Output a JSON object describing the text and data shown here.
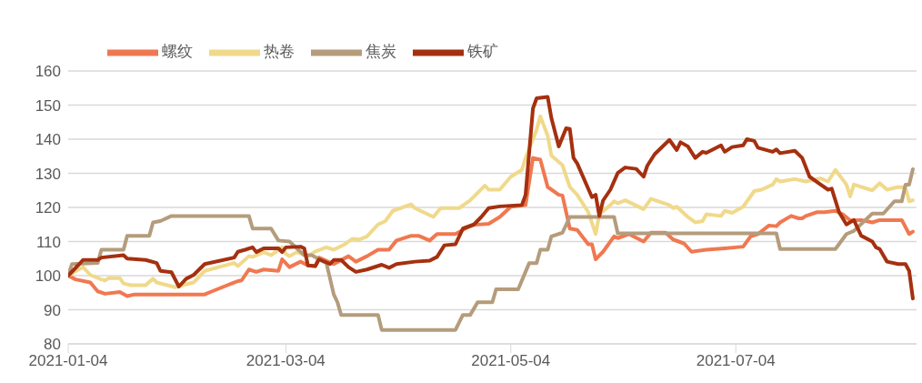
{
  "chart_data": {
    "type": "line",
    "xlim": [
      "2021-01-04",
      "2021-08-22"
    ],
    "xticks": [
      "2021-01-04",
      "2021-03-04",
      "2021-05-04",
      "2021-07-04"
    ],
    "ylim": [
      80,
      160
    ],
    "yticks": [
      80,
      90,
      100,
      110,
      120,
      130,
      140,
      150,
      160
    ],
    "grid": "y",
    "legend": "top left",
    "marker": "none",
    "line_style": "solid",
    "series": [
      {
        "name": "螺纹",
        "color": "#f07850",
        "x": [
          "2021-01-04",
          "2021-01-06",
          "2021-01-10",
          "2021-01-12",
          "2021-01-14",
          "2021-01-18",
          "2021-01-20",
          "2021-01-22",
          "2021-02-10",
          "2021-02-12",
          "2021-02-19",
          "2021-02-20",
          "2021-02-22",
          "2021-02-24",
          "2021-02-26",
          "2021-03-02",
          "2021-03-03",
          "2021-03-05",
          "2021-03-08",
          "2021-03-10",
          "2021-03-12",
          "2021-03-13",
          "2021-03-17",
          "2021-03-21",
          "2021-03-23",
          "2021-03-26",
          "2021-03-29",
          "2021-04-01",
          "2021-04-03",
          "2021-04-07",
          "2021-04-09",
          "2021-04-12",
          "2021-04-14",
          "2021-04-19",
          "2021-04-22",
          "2021-04-24",
          "2021-04-28",
          "2021-05-01",
          "2021-05-04",
          "2021-05-08",
          "2021-05-10",
          "2021-05-12",
          "2021-05-14",
          "2021-05-17",
          "2021-05-18",
          "2021-05-20",
          "2021-05-22",
          "2021-05-25",
          "2021-05-26",
          "2021-05-27",
          "2021-05-29",
          "2021-06-01",
          "2021-06-02",
          "2021-06-05",
          "2021-06-09",
          "2021-06-11",
          "2021-06-15",
          "2021-06-17",
          "2021-06-20",
          "2021-06-22",
          "2021-06-26",
          "2021-07-01",
          "2021-07-06",
          "2021-07-08",
          "2021-07-10",
          "2021-07-13",
          "2021-07-15",
          "2021-07-16",
          "2021-07-19",
          "2021-07-21",
          "2021-07-22",
          "2021-07-23",
          "2021-07-26",
          "2021-07-28",
          "2021-07-31",
          "2021-08-02",
          "2021-08-04",
          "2021-08-07",
          "2021-08-10",
          "2021-08-12",
          "2021-08-18",
          "2021-08-20",
          "2021-08-21"
        ],
        "values": [
          100,
          98.9,
          98,
          95.4,
          94.7,
          95.2,
          94,
          94.5,
          94.5,
          95.4,
          98.4,
          98.6,
          101.8,
          101.1,
          101.8,
          101.4,
          104.8,
          102.5,
          104.1,
          103,
          102.8,
          105.3,
          103.4,
          105.7,
          104.1,
          105.7,
          107.6,
          107.6,
          110.3,
          111.7,
          111.7,
          110.3,
          112.2,
          112.2,
          114,
          114.9,
          115.2,
          117.2,
          120.2,
          120.7,
          134.5,
          134,
          126,
          123.7,
          123.5,
          113.8,
          113.4,
          109.2,
          109.2,
          104.8,
          107,
          111.5,
          111,
          112.2,
          110,
          112.6,
          112.6,
          110.6,
          109.4,
          107,
          107.6,
          108,
          108.5,
          111.5,
          112.2,
          114.7,
          114.5,
          115.6,
          117.5,
          116.8,
          116.8,
          117.5,
          118.6,
          118.6,
          119,
          118,
          116.2,
          116.3,
          115.6,
          116.3,
          116.3,
          112.2,
          112.9
        ]
      },
      {
        "name": "热卷",
        "color": "#f0d98a",
        "x": [
          "2021-01-04",
          "2021-01-08",
          "2021-01-10",
          "2021-01-13",
          "2021-01-14",
          "2021-01-15",
          "2021-01-18",
          "2021-01-19",
          "2021-01-21",
          "2021-01-25",
          "2021-01-27",
          "2021-01-28",
          "2021-02-02",
          "2021-02-04",
          "2021-02-07",
          "2021-02-10",
          "2021-02-18",
          "2021-02-19",
          "2021-02-22",
          "2021-02-23",
          "2021-02-26",
          "2021-02-28",
          "2021-03-03",
          "2021-03-04",
          "2021-03-05",
          "2021-03-07",
          "2021-03-10",
          "2021-03-12",
          "2021-03-15",
          "2021-03-17",
          "2021-03-20",
          "2021-03-22",
          "2021-03-24",
          "2021-03-26",
          "2021-03-29",
          "2021-03-31",
          "2021-04-02",
          "2021-04-07",
          "2021-04-08",
          "2021-04-13",
          "2021-04-15",
          "2021-04-20",
          "2021-04-23",
          "2021-04-27",
          "2021-04-28",
          "2021-05-01",
          "2021-05-04",
          "2021-05-07",
          "2021-05-08",
          "2021-05-11",
          "2021-05-12",
          "2021-05-14",
          "2021-05-15",
          "2021-05-18",
          "2021-05-20",
          "2021-05-22",
          "2021-05-25",
          "2021-05-27",
          "2021-05-28",
          "2021-05-31",
          "2021-06-01",
          "2021-06-02",
          "2021-06-04",
          "2021-06-09",
          "2021-06-11",
          "2021-06-16",
          "2021-06-17",
          "2021-06-18",
          "2021-06-21",
          "2021-06-23",
          "2021-06-25",
          "2021-06-26",
          "2021-06-30",
          "2021-07-01",
          "2021-07-03",
          "2021-07-06",
          "2021-07-09",
          "2021-07-11",
          "2021-07-14",
          "2021-07-15",
          "2021-07-16",
          "2021-07-20",
          "2021-07-23",
          "2021-07-27",
          "2021-07-29",
          "2021-07-31",
          "2021-08-03",
          "2021-08-04",
          "2021-08-05",
          "2021-08-10",
          "2021-08-12",
          "2021-08-14",
          "2021-08-17",
          "2021-08-19",
          "2021-08-20",
          "2021-08-21"
        ],
        "values": [
          100,
          102.5,
          100.2,
          98.9,
          98.6,
          99.3,
          99.3,
          97.7,
          97.2,
          97.2,
          99.1,
          98,
          96.6,
          97.2,
          98,
          101.4,
          103.7,
          102.8,
          105.7,
          105.5,
          106.9,
          106,
          108.3,
          106.4,
          105.7,
          106.9,
          105.7,
          107.1,
          108.3,
          107.6,
          109.2,
          110.8,
          110.6,
          111.5,
          115,
          116,
          119,
          120.9,
          119.8,
          117.2,
          119.8,
          119.8,
          122.1,
          126.4,
          125.2,
          125.2,
          129,
          131,
          134.5,
          142.8,
          146.7,
          141,
          135.2,
          132.4,
          126,
          123.7,
          118.6,
          112.2,
          118,
          120.7,
          121.8,
          121.2,
          122.1,
          119.5,
          122.5,
          120.7,
          119.8,
          120.2,
          117.2,
          115.6,
          116,
          118,
          117.5,
          119,
          118.4,
          120.2,
          124.8,
          125.2,
          126.7,
          128.3,
          127.6,
          128.3,
          127.6,
          128.5,
          127.6,
          131,
          126.7,
          123.2,
          126.7,
          125,
          127.1,
          125.2,
          126,
          125.8,
          121.8,
          122.1
        ]
      },
      {
        "name": "焦炭",
        "color": "#b49c7c",
        "x": [
          "2021-01-04",
          "2021-01-05",
          "2021-01-12",
          "2021-01-13",
          "2021-01-19",
          "2021-01-20",
          "2021-01-26",
          "2021-01-27",
          "2021-01-29",
          "2021-02-01",
          "2021-02-22",
          "2021-02-23",
          "2021-02-28",
          "2021-03-02",
          "2021-03-05",
          "2021-03-09",
          "2021-03-11",
          "2021-03-15",
          "2021-03-17",
          "2021-03-18",
          "2021-03-19",
          "2021-03-29",
          "2021-03-30",
          "2021-04-19",
          "2021-04-21",
          "2021-04-23",
          "2021-04-25",
          "2021-04-29",
          "2021-04-30",
          "2021-05-06",
          "2021-05-09",
          "2021-05-11",
          "2021-05-12",
          "2021-05-14",
          "2021-05-15",
          "2021-05-18",
          "2021-05-20",
          "2021-06-01",
          "2021-06-02",
          "2021-07-15",
          "2021-07-16",
          "2021-07-31",
          "2021-08-03",
          "2021-08-05",
          "2021-08-10",
          "2021-08-13",
          "2021-08-16",
          "2021-08-18",
          "2021-08-19",
          "2021-08-20",
          "2021-08-21"
        ],
        "values": [
          100,
          103.4,
          103.7,
          107.6,
          107.6,
          111.7,
          111.7,
          115.6,
          116,
          117.5,
          117.5,
          113.8,
          113.8,
          110.3,
          110,
          106,
          106,
          103.7,
          94.5,
          92.2,
          88.5,
          88.5,
          84.1,
          84.1,
          88.5,
          88.5,
          92.2,
          92.2,
          96,
          96,
          103.7,
          103.7,
          107.6,
          107.6,
          111.5,
          112.6,
          117.2,
          117.2,
          112.4,
          112.4,
          107.8,
          107.8,
          112.2,
          113.1,
          118.2,
          118.2,
          121.8,
          121.8,
          126.7,
          126.7,
          131.2
        ]
      },
      {
        "name": "铁矿",
        "color": "#a5300f",
        "x": [
          "2021-01-04",
          "2021-01-07",
          "2021-01-08",
          "2021-01-12",
          "2021-01-13",
          "2021-01-19",
          "2021-01-20",
          "2021-01-25",
          "2021-01-28",
          "2021-01-29",
          "2021-02-01",
          "2021-02-03",
          "2021-02-05",
          "2021-02-07",
          "2021-02-10",
          "2021-02-18",
          "2021-02-19",
          "2021-02-21",
          "2021-02-23",
          "2021-02-24",
          "2021-02-26",
          "2021-03-02",
          "2021-03-03",
          "2021-03-04",
          "2021-03-08",
          "2021-03-09",
          "2021-03-10",
          "2021-03-12",
          "2021-03-13",
          "2021-03-16",
          "2021-03-17",
          "2021-03-19",
          "2021-03-21",
          "2021-03-23",
          "2021-03-26",
          "2021-03-30",
          "2021-04-01",
          "2021-04-03",
          "2021-04-08",
          "2021-04-12",
          "2021-04-14",
          "2021-04-16",
          "2021-04-19",
          "2021-04-21",
          "2021-04-24",
          "2021-04-26",
          "2021-04-28",
          "2021-05-01",
          "2021-05-07",
          "2021-05-08",
          "2021-05-10",
          "2021-05-11",
          "2021-05-14",
          "2021-05-15",
          "2021-05-17",
          "2021-05-19",
          "2021-05-20",
          "2021-05-21",
          "2021-05-22",
          "2021-05-26",
          "2021-05-27",
          "2021-05-28",
          "2021-05-29",
          "2021-05-31",
          "2021-06-02",
          "2021-06-04",
          "2021-06-07",
          "2021-06-09",
          "2021-06-10",
          "2021-06-12",
          "2021-06-16",
          "2021-06-18",
          "2021-06-19",
          "2021-06-21",
          "2021-06-23",
          "2021-06-25",
          "2021-06-26",
          "2021-06-30",
          "2021-07-01",
          "2021-07-03",
          "2021-07-06",
          "2021-07-07",
          "2021-07-09",
          "2021-07-10",
          "2021-07-14",
          "2021-07-15",
          "2021-07-16",
          "2021-07-20",
          "2021-07-22",
          "2021-07-24",
          "2021-07-27",
          "2021-07-29",
          "2021-07-30",
          "2021-08-01",
          "2021-08-03",
          "2021-08-05",
          "2021-08-07",
          "2021-08-10",
          "2021-08-11",
          "2021-08-12",
          "2021-08-14",
          "2021-08-17",
          "2021-08-19",
          "2021-08-20",
          "2021-08-21"
        ],
        "values": [
          100,
          103.4,
          104.6,
          104.6,
          105.3,
          106,
          105,
          104.6,
          103.7,
          101.4,
          101,
          96.8,
          99.1,
          100.2,
          103.4,
          105.3,
          107,
          107.6,
          108.3,
          106.9,
          108,
          108,
          106.9,
          108.3,
          108.5,
          108,
          103,
          102.8,
          104.8,
          103.4,
          104.6,
          104.6,
          102.5,
          101.1,
          101.8,
          103.2,
          102.3,
          103.4,
          104.1,
          104.4,
          105.5,
          108.9,
          109.2,
          113.8,
          115,
          117.2,
          119.8,
          120.3,
          120.7,
          123.7,
          149,
          152,
          152.4,
          146.2,
          137.9,
          143.2,
          143,
          134.5,
          132.9,
          123,
          123.7,
          117.5,
          122,
          125.2,
          130.1,
          131.7,
          131.3,
          129,
          132.2,
          135.6,
          139.8,
          136.8,
          139.1,
          137.9,
          134.5,
          136.3,
          136,
          138.2,
          136.3,
          137.7,
          138.2,
          140,
          139.5,
          137.5,
          136.3,
          137,
          135.9,
          136.6,
          134.5,
          129,
          126.7,
          125.2,
          125.5,
          118.6,
          115,
          116.3,
          111.7,
          110,
          108.3,
          107.8,
          104.1,
          103.4,
          103.4,
          101.4,
          93.3
        ]
      }
    ]
  }
}
